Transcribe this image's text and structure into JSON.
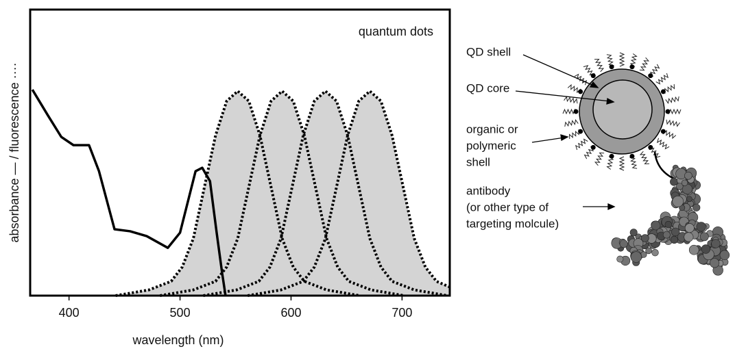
{
  "chart_data": {
    "type": "line",
    "annotation": "quantum dots",
    "xlabel": "wavelength (nm)",
    "ylabel": "absorbance — / fluorescence ····",
    "xlim": [
      365,
      743
    ],
    "ylim": [
      0,
      1
    ],
    "xticks": [
      400,
      500,
      600,
      700
    ],
    "series": [
      {
        "style": "solid",
        "color": "#000000",
        "x": [
          367,
          381,
          393,
          404,
          418,
          427,
          441,
          455,
          470,
          489,
          500,
          514,
          520,
          527,
          533,
          538,
          541
        ],
        "values": [
          0.72,
          0.63,
          0.555,
          0.526,
          0.526,
          0.435,
          0.232,
          0.225,
          0.208,
          0.167,
          0.22,
          0.435,
          0.447,
          0.4,
          0.22,
          0.077,
          0
        ]
      },
      {
        "style": "dotted",
        "color": "#000000",
        "fill": "#d4d4d4",
        "x": [
          442,
          472,
          492,
          502,
          512,
          522,
          532,
          542,
          552,
          562,
          572,
          582,
          592,
          602,
          612,
          632,
          662
        ],
        "values": [
          0,
          0.02,
          0.05,
          0.1,
          0.2,
          0.38,
          0.56,
          0.68,
          0.715,
          0.68,
          0.56,
          0.38,
          0.2,
          0.1,
          0.05,
          0.02,
          0
        ]
      },
      {
        "style": "dotted",
        "color": "#000000",
        "fill": "#d4d4d4",
        "x": [
          482,
          512,
          532,
          542,
          552,
          562,
          572,
          582,
          592,
          602,
          612,
          622,
          632,
          642,
          652,
          672,
          702
        ],
        "values": [
          0,
          0.02,
          0.05,
          0.1,
          0.2,
          0.38,
          0.56,
          0.68,
          0.715,
          0.68,
          0.56,
          0.38,
          0.2,
          0.1,
          0.05,
          0.02,
          0
        ]
      },
      {
        "style": "dotted",
        "color": "#000000",
        "fill": "#d4d4d4",
        "x": [
          521,
          551,
          571,
          581,
          591,
          601,
          611,
          621,
          631,
          641,
          651,
          661,
          671,
          681,
          691,
          711,
          741
        ],
        "values": [
          0,
          0.02,
          0.05,
          0.1,
          0.2,
          0.38,
          0.56,
          0.68,
          0.715,
          0.68,
          0.56,
          0.38,
          0.2,
          0.1,
          0.05,
          0.02,
          0
        ]
      },
      {
        "style": "dotted",
        "color": "#000000",
        "fill": "#d4d4d4",
        "x": [
          561,
          591,
          611,
          621,
          631,
          641,
          651,
          661,
          671,
          681,
          691,
          701,
          711,
          721,
          731,
          743
        ],
        "values": [
          0,
          0.02,
          0.05,
          0.1,
          0.2,
          0.38,
          0.56,
          0.68,
          0.715,
          0.68,
          0.56,
          0.38,
          0.2,
          0.1,
          0.05,
          0.03
        ]
      }
    ]
  },
  "diagram": {
    "labels": [
      [
        "QD shell"
      ],
      [
        "QD core"
      ],
      [
        "organic or",
        "polymeric",
        "shell"
      ],
      [
        "antibody",
        "(or other type of",
        "targeting molcule)"
      ]
    ]
  }
}
